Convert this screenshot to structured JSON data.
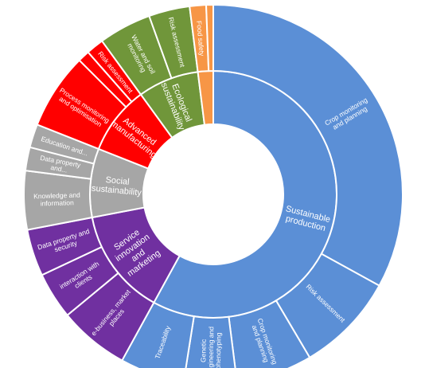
{
  "chart_data": {
    "type": "sunburst",
    "title": "",
    "legend": "none",
    "colors": {
      "sustainable_production": "#5B8FD6",
      "service_innovation": "#7030A0",
      "social_sustainability": "#A6A6A6",
      "advanced_manufacturing": "#FF0000",
      "ecological_sustainability": "#70963A",
      "other": "#F79646",
      "border": "#FFFFFF"
    },
    "inner_ring": [
      {
        "name": "Sustainable production",
        "value": 58.0,
        "color_key": "sustainable_production"
      },
      {
        "name": "Service innovation and marketing",
        "value": 14.0,
        "color_key": "service_innovation"
      },
      {
        "name": "Social sustainability",
        "value": 9.0,
        "color_key": "social_sustainability"
      },
      {
        "name": "Advanced manufacturing",
        "value": 9.0,
        "color_key": "advanced_manufacturing"
      },
      {
        "name": "Ecological sustainability",
        "value": 8.0,
        "color_key": "ecological_sustainability"
      },
      {
        "name": "",
        "value": 2.0,
        "color_key": "other"
      }
    ],
    "outer_ring": [
      {
        "name": "Crop monitoring and planning",
        "parent": "Sustainable production",
        "value": 33.0
      },
      {
        "name": "Risk assessment",
        "parent": "Sustainable production",
        "value": 8.5
      },
      {
        "name": "Crop monitoring and planning",
        "parent": "Sustainable production",
        "value": 6.5
      },
      {
        "name": "Genetic engineering and phenotyping",
        "parent": "Sustainable production",
        "value": 4.5
      },
      {
        "name": "Traceability",
        "parent": "Sustainable production",
        "value": 5.5
      },
      {
        "name": "e-business, market places",
        "parent": "Service innovation and marketing",
        "value": 6.0
      },
      {
        "name": "interaction with clients",
        "parent": "Service innovation and marketing",
        "value": 4.0
      },
      {
        "name": "Data property and security",
        "parent": "Service innovation and marketing",
        "value": 4.0
      },
      {
        "name": "Knowledge and information",
        "parent": "Social sustainability",
        "value": 5.0
      },
      {
        "name": "Data property and...",
        "parent": "Social sustainability",
        "value": 2.0
      },
      {
        "name": "Education and...",
        "parent": "Social sustainability",
        "value": 2.0
      },
      {
        "name": "Process monitoring and optimisation",
        "parent": "Advanced manufacturing",
        "value": 6.5
      },
      {
        "name": "",
        "parent": "Advanced manufacturing",
        "value": 1.0
      },
      {
        "name": "Risk assessment",
        "parent": "Advanced manufacturing",
        "value": 1.5
      },
      {
        "name": "Water and soil monitoring",
        "parent": "Ecological sustainability",
        "value": 4.5
      },
      {
        "name": "Risk assessment",
        "parent": "Ecological sustainability",
        "value": 3.5
      },
      {
        "name": "Food safety",
        "parent": "",
        "value": 1.4
      },
      {
        "name": "",
        "parent": "",
        "value": 0.6
      }
    ]
  }
}
